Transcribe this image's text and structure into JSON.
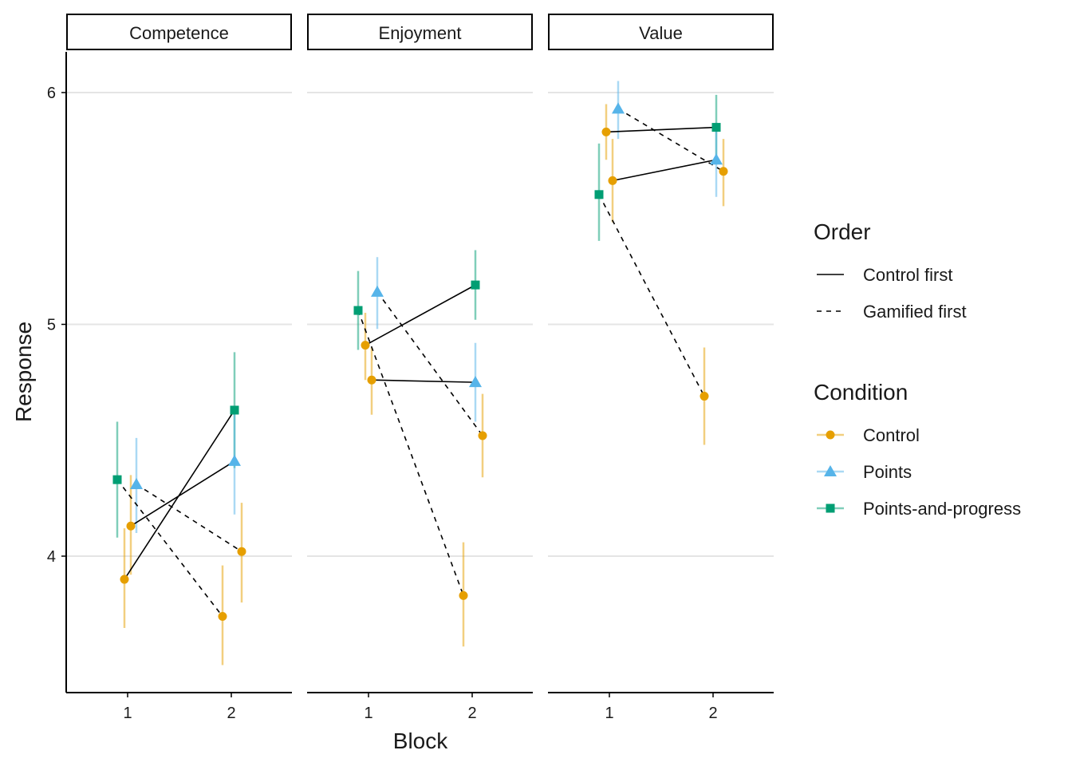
{
  "chart_data": {
    "type": "scatter",
    "xlabel": "Block",
    "ylabel": "Response",
    "x_ticks": [
      "1",
      "2"
    ],
    "y_ticks": [
      4,
      5,
      6
    ],
    "ylim": [
      3.42,
      6.18
    ],
    "xlim": [
      0.5,
      2.6
    ],
    "grid": "horizontal major",
    "legend_position": "right",
    "facets": [
      "Competence",
      "Enjoyment",
      "Value"
    ],
    "legends": {
      "order": {
        "title": "Order",
        "entries": [
          {
            "key": "control_first",
            "label": "Control first",
            "linetype": "solid"
          },
          {
            "key": "gamified_first",
            "label": "Gamified first",
            "linetype": "dashed"
          }
        ]
      },
      "condition": {
        "title": "Condition",
        "entries": [
          {
            "key": "control",
            "label": "Control",
            "shape": "circle",
            "color": "#E69F00"
          },
          {
            "key": "points",
            "label": "Points",
            "shape": "triangle",
            "color": "#56B4E9"
          },
          {
            "key": "points_and_progress",
            "label": "Points-and-progress",
            "shape": "square",
            "color": "#009E73"
          }
        ]
      }
    },
    "panels": [
      {
        "facet": "Competence",
        "points": [
          {
            "condition": "control",
            "order": "control_first",
            "block": 1,
            "y": 3.9,
            "lo": 3.69,
            "hi": 4.12
          },
          {
            "condition": "points_and_progress",
            "order": "control_first",
            "block": 2,
            "y": 4.63,
            "lo": 4.38,
            "hi": 4.88
          },
          {
            "condition": "control",
            "order": "control_first",
            "block": 1,
            "y": 4.13,
            "lo": 3.92,
            "hi": 4.35
          },
          {
            "condition": "points",
            "order": "control_first",
            "block": 2,
            "y": 4.41,
            "lo": 4.18,
            "hi": 4.63
          },
          {
            "condition": "points_and_progress",
            "order": "gamified_first",
            "block": 1,
            "y": 4.33,
            "lo": 4.08,
            "hi": 4.58
          },
          {
            "condition": "control",
            "order": "gamified_first",
            "block": 2,
            "y": 3.74,
            "lo": 3.53,
            "hi": 3.96
          },
          {
            "condition": "points",
            "order": "gamified_first",
            "block": 1,
            "y": 4.31,
            "lo": 4.1,
            "hi": 4.51
          },
          {
            "condition": "control",
            "order": "gamified_first",
            "block": 2,
            "y": 4.02,
            "lo": 3.8,
            "hi": 4.23
          }
        ]
      },
      {
        "facet": "Enjoyment",
        "points": [
          {
            "condition": "control",
            "order": "control_first",
            "block": 1,
            "y": 4.91,
            "lo": 4.76,
            "hi": 5.05
          },
          {
            "condition": "points_and_progress",
            "order": "control_first",
            "block": 2,
            "y": 5.17,
            "lo": 5.02,
            "hi": 5.32
          },
          {
            "condition": "control",
            "order": "control_first",
            "block": 1,
            "y": 4.76,
            "lo": 4.61,
            "hi": 4.9
          },
          {
            "condition": "points",
            "order": "control_first",
            "block": 2,
            "y": 4.75,
            "lo": 4.58,
            "hi": 4.92
          },
          {
            "condition": "points_and_progress",
            "order": "gamified_first",
            "block": 1,
            "y": 5.06,
            "lo": 4.89,
            "hi": 5.23
          },
          {
            "condition": "control",
            "order": "gamified_first",
            "block": 2,
            "y": 3.83,
            "lo": 3.61,
            "hi": 4.06
          },
          {
            "condition": "points",
            "order": "gamified_first",
            "block": 1,
            "y": 5.14,
            "lo": 4.98,
            "hi": 5.29
          },
          {
            "condition": "control",
            "order": "gamified_first",
            "block": 2,
            "y": 4.52,
            "lo": 4.34,
            "hi": 4.7
          }
        ]
      },
      {
        "facet": "Value",
        "points": [
          {
            "condition": "control",
            "order": "control_first",
            "block": 1,
            "y": 5.83,
            "lo": 5.71,
            "hi": 5.95
          },
          {
            "condition": "points_and_progress",
            "order": "control_first",
            "block": 2,
            "y": 5.85,
            "lo": 5.7,
            "hi": 5.99
          },
          {
            "condition": "control",
            "order": "control_first",
            "block": 1,
            "y": 5.62,
            "lo": 5.44,
            "hi": 5.8
          },
          {
            "condition": "points",
            "order": "control_first",
            "block": 2,
            "y": 5.71,
            "lo": 5.55,
            "hi": 5.87
          },
          {
            "condition": "points_and_progress",
            "order": "gamified_first",
            "block": 1,
            "y": 5.56,
            "lo": 5.36,
            "hi": 5.78
          },
          {
            "condition": "control",
            "order": "gamified_first",
            "block": 2,
            "y": 4.69,
            "lo": 4.48,
            "hi": 4.9
          },
          {
            "condition": "points",
            "order": "gamified_first",
            "block": 1,
            "y": 5.93,
            "lo": 5.8,
            "hi": 6.05
          },
          {
            "condition": "control",
            "order": "gamified_first",
            "block": 2,
            "y": 5.66,
            "lo": 5.51,
            "hi": 5.8
          }
        ]
      }
    ]
  }
}
